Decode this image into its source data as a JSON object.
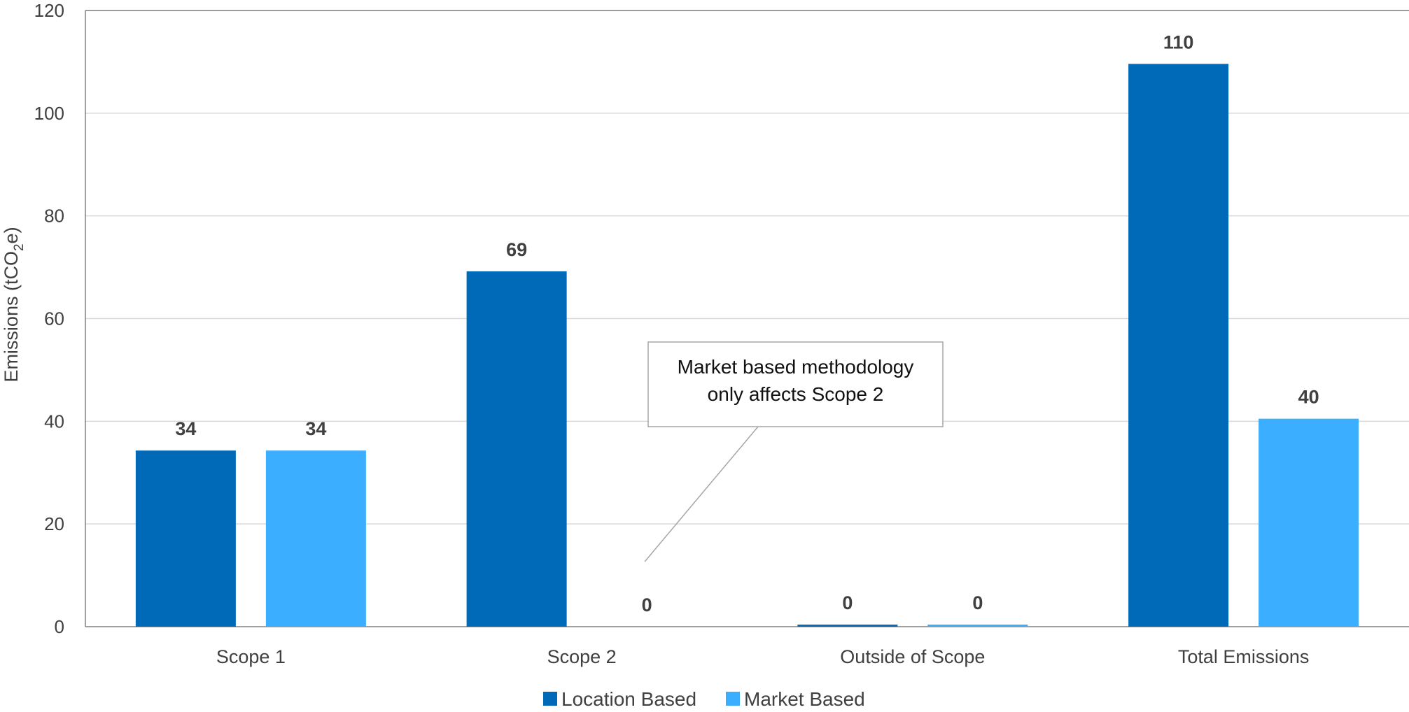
{
  "chart_data": {
    "type": "bar",
    "categories": [
      "Scope 1",
      "Scope 2",
      "Outside of Scope",
      "Total Emissions"
    ],
    "series": [
      {
        "name": "Location Based",
        "values": [
          34.3,
          69.2,
          0.4,
          109.6
        ],
        "labels": [
          "34",
          "69",
          "0",
          "110"
        ],
        "color": "#006AB8"
      },
      {
        "name": "Market Based",
        "values": [
          34.3,
          0,
          0.4,
          40.5
        ],
        "labels": [
          "34",
          "0",
          "0",
          "40"
        ],
        "color": "#3BAEFF"
      }
    ],
    "ylabel_main": "Emissions (tCO",
    "ylabel_sub": "2",
    "ylabel_end": "e)",
    "ylim": [
      0,
      120
    ],
    "yticks": [
      "0",
      "20",
      "40",
      "60",
      "80",
      "100",
      "120"
    ],
    "grid": true,
    "legend_position": "bottom-center",
    "annotation": {
      "lines": [
        "Market based methodology",
        "only affects Scope 2"
      ],
      "points_to": "Scope 2 / Market Based"
    }
  }
}
